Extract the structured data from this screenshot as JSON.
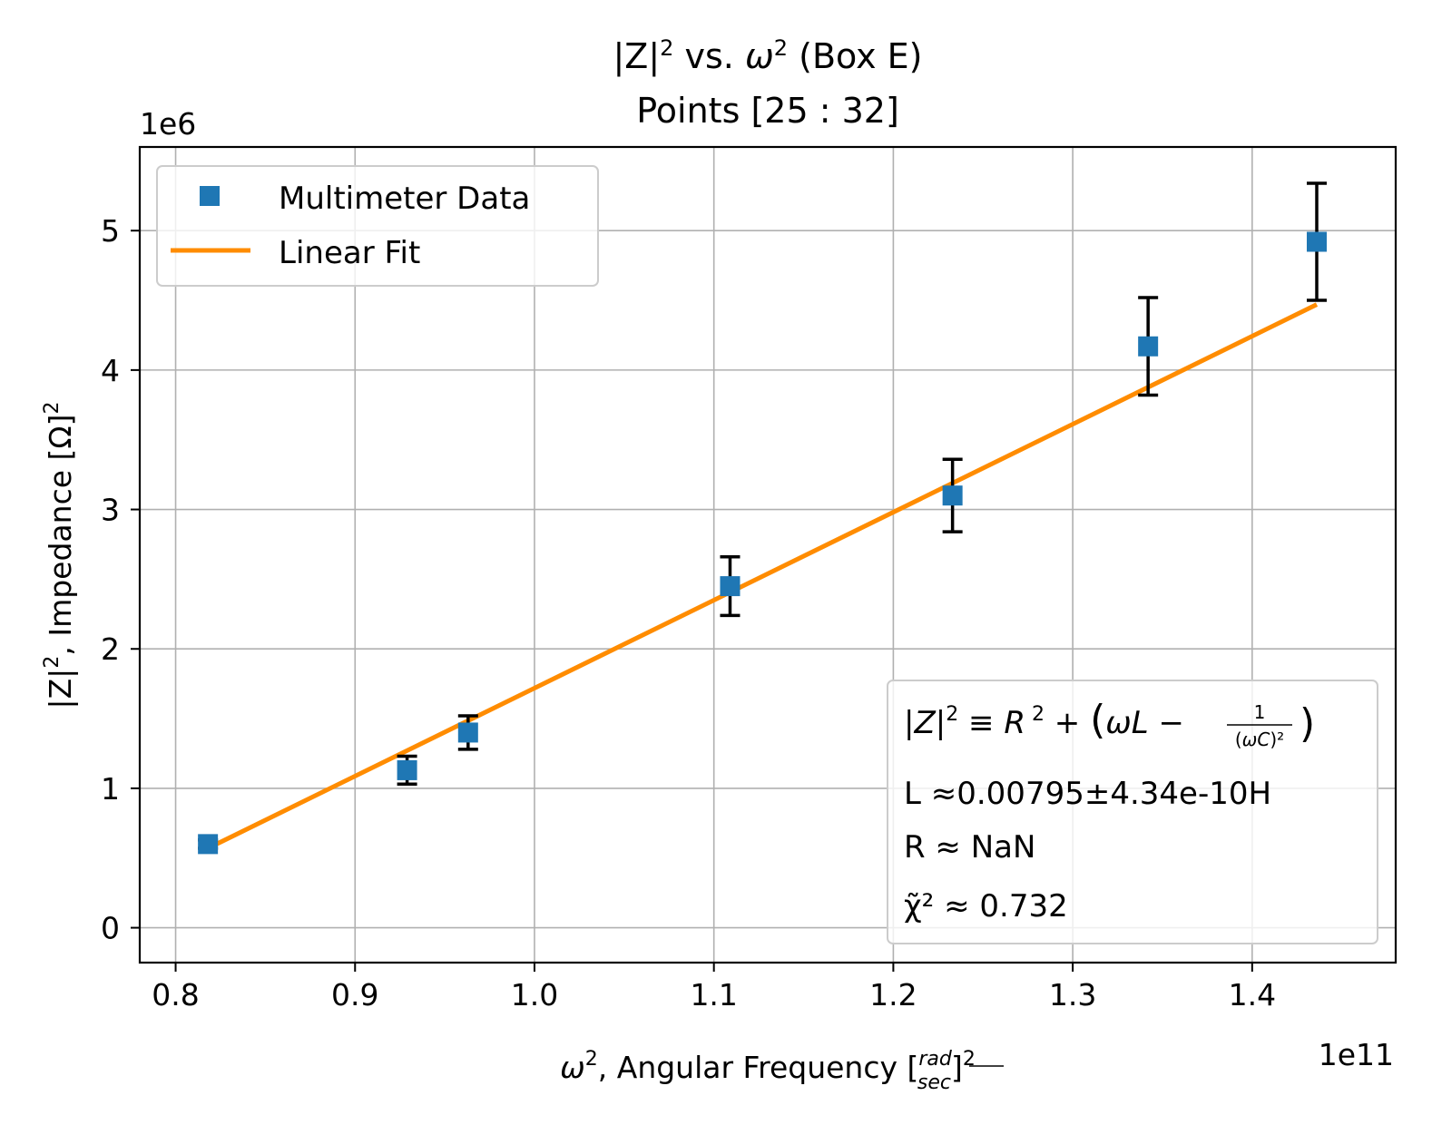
{
  "chart_data": {
    "type": "scatter",
    "title_line1": "|Z|² vs. ω² (Box E)",
    "title_line2": "Points [25 : 32]",
    "xlabel": "ω², Angular Frequency [rad/sec]²",
    "ylabel": "|Z|², Impedance [Ω]²",
    "x_offset_text": "1e11",
    "y_offset_text": "1e6",
    "xlim": [
      78000000000.0,
      148000000000.0
    ],
    "ylim": [
      -250000.0,
      5600000.0
    ],
    "x_ticks": [
      80000000000.0,
      90000000000.0,
      100000000000.0,
      110000000000.0,
      120000000000.0,
      130000000000.0,
      140000000000.0
    ],
    "x_tick_labels": [
      "0.8",
      "0.9",
      "1.0",
      "1.1",
      "1.2",
      "1.3",
      "1.4"
    ],
    "y_ticks": [
      0,
      1000000.0,
      2000000.0,
      3000000.0,
      4000000.0,
      5000000.0
    ],
    "y_tick_labels": [
      "0",
      "1",
      "2",
      "3",
      "4",
      "5"
    ],
    "grid": true,
    "legend_position": "upper-left",
    "series": [
      {
        "name": "Multimeter Data",
        "kind": "points-with-errorbars",
        "color": "#1f77b4",
        "marker": "square",
        "x": [
          81800000000.0,
          92900000000.0,
          96300000000.0,
          110900000000.0,
          123300000000.0,
          134200000000.0,
          143600000000.0
        ],
        "y": [
          600000.0,
          1130000.0,
          1400000.0,
          2450000.0,
          3100000.0,
          4170000.0,
          4920000.0
        ],
        "yerr": [
          30000.0,
          100000.0,
          120000.0,
          210000.0,
          260000.0,
          350000.0,
          420000.0
        ]
      },
      {
        "name": "Linear Fit",
        "kind": "line",
        "color": "#ff8c00",
        "x": [
          81800000000.0,
          143600000000.0
        ],
        "y": [
          570000.0,
          4470000.0
        ]
      }
    ],
    "annotation": {
      "equation": "|Z|² ≡ R² + (ωL − 1/(ωC)²)",
      "line_L": "L ≈0.00795±4.34e-10H",
      "line_R": "R ≈ NaN",
      "line_chi": "χ̃² ≈ 0.732",
      "position": "lower-right"
    }
  }
}
